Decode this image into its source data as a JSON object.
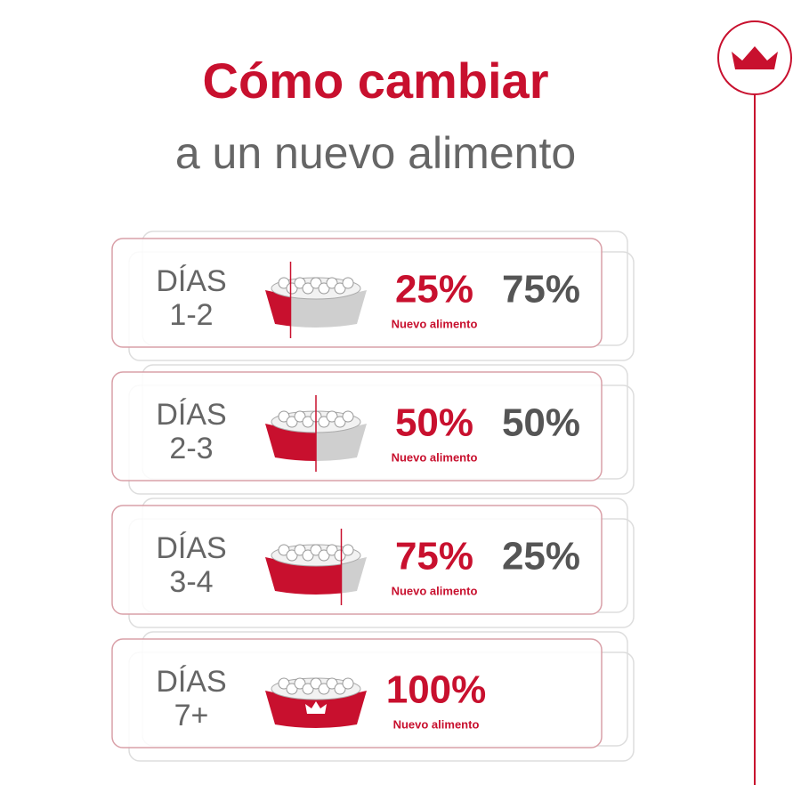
{
  "header": {
    "title": "Cómo cambiar",
    "subtitle": "a un nuevo alimento"
  },
  "steps": [
    {
      "days": "DÍAS",
      "range": "1-2",
      "new_pct": "25%",
      "caption": "Nuevo alimento",
      "old_pct": "75%"
    },
    {
      "days": "DÍAS",
      "range": "2-3",
      "new_pct": "50%",
      "caption": "Nuevo alimento",
      "old_pct": "50%"
    },
    {
      "days": "DÍAS",
      "range": "3-4",
      "new_pct": "75%",
      "caption": "Nuevo alimento",
      "old_pct": "25%"
    },
    {
      "days": "DÍAS",
      "range": "7+",
      "new_pct": "100%",
      "caption": "Nuevo alimento"
    }
  ]
}
